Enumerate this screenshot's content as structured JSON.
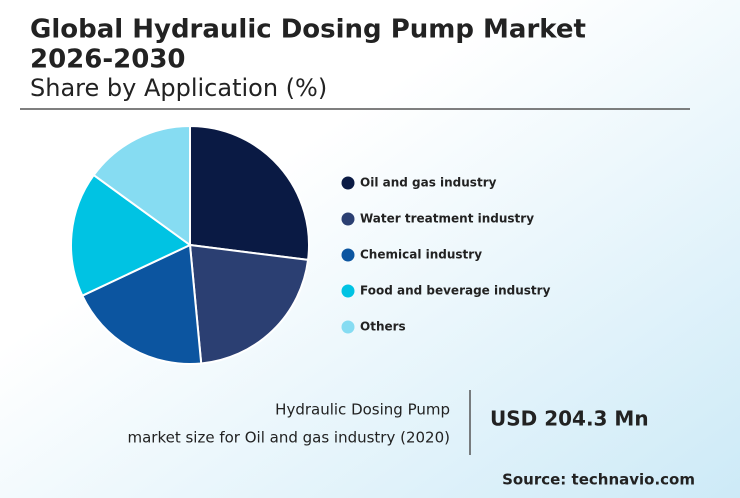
{
  "chart_data": {
    "type": "pie",
    "title": [
      "Global Hydraulic Dosing Pump Market",
      "2026-2030"
    ],
    "subtitle": "Share by Application (%)",
    "categories": [
      "Oil and gas industry",
      "Water treatment industry",
      "Chemical industry",
      "Food and beverage industry",
      "Others"
    ],
    "values": [
      27,
      21.5,
      19.5,
      17,
      15
    ],
    "colors": [
      "#0a1a44",
      "#2b3f72",
      "#0c55a0",
      "#00c3e3",
      "#86dcf2"
    ],
    "legend": "right"
  },
  "stat": {
    "label": [
      "Hydraulic Dosing Pump",
      "market size for Oil and gas industry (2020)"
    ],
    "value": "USD 204.3 Mn"
  },
  "source": "Source: technavio.com"
}
